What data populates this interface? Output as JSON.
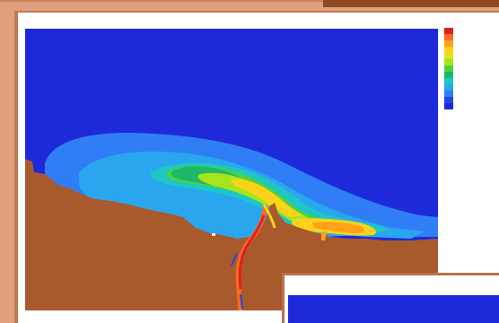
{
  "colors": {
    "background": "#e0a07e",
    "window": "#ffffff",
    "window_border": "#c07a52",
    "sea": "#1e2ad9",
    "land": "#a85a2c"
  },
  "legend": {
    "colors": [
      "#e02020",
      "#ff6a1a",
      "#ffa21a",
      "#ffd21a",
      "#d8e81a",
      "#a6e51e",
      "#4fd23c",
      "#1fb86a",
      "#1ec6c6",
      "#29a6ee",
      "#2f7ef6",
      "#2046e8",
      "#1e2ad9"
    ],
    "labels": [
      "",
      "",
      "",
      "",
      "",
      "",
      "",
      "",
      "",
      "",
      "",
      "",
      ""
    ],
    "footer": ""
  },
  "map_labels": [
    "",
    "",
    "",
    ""
  ]
}
